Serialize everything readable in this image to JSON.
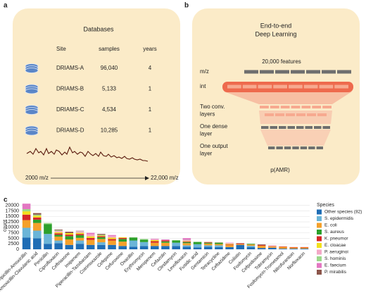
{
  "panel_labels": [
    "a",
    "b",
    "c"
  ],
  "databases": {
    "title": "Databases",
    "columns": [
      "Site",
      "samples",
      "years"
    ],
    "rows": [
      [
        "DRIAMS-A",
        "96,040",
        4
      ],
      [
        "DRIAMS-B",
        "5,133",
        1
      ],
      [
        "DRIAMS-C",
        "4,534",
        1
      ],
      [
        "DRIAMS-D",
        "10,285",
        1
      ]
    ],
    "axis_start": "2000 m/z",
    "axis_end": "22,000 m/z"
  },
  "deep_learning": {
    "title_lines": [
      "End-to-end",
      "Deep Learning"
    ],
    "features": "20,000 features",
    "layers": [
      [
        "m/z"
      ],
      [
        "int"
      ],
      [
        "Two conv.",
        "layers"
      ],
      [
        "One dense",
        "layer"
      ],
      [
        "One output",
        "layer"
      ]
    ],
    "output": "p(AMR)"
  },
  "chart_data": {
    "type": "bar",
    "stacked": true,
    "ylabel": "count",
    "legend_title": "Species",
    "grid": true,
    "categories": [
      "Ampicillin-Amoxicillin",
      "Amoxicillin-Clavulanic acid",
      "Penicillin",
      "Ciprofloxacin",
      "Ceftriaxone",
      "Imipenem",
      "Piperacillin-Tazobactam",
      "Cotrimoxazole",
      "Cefepime",
      "Cefuroxime",
      "Oxacillin",
      "Erythromycin",
      "Meropenem",
      "Cefazolin",
      "Clindamycin",
      "Levofloxacin",
      "Fusidic acid",
      "Gentamicin",
      "Tetracycline",
      "Ceftazidime",
      "Colistin",
      "Fosfomycin",
      "Cefpodoxime",
      "Tobramycin",
      "Fosfomycin-Trometamol",
      "Nitrofurantoin",
      "Norfloxacin"
    ],
    "ylim": [
      0,
      21500
    ],
    "yticks": [
      0,
      2500,
      5000,
      7500,
      10000,
      12500,
      15000,
      17500,
      20000
    ],
    "series": [
      {
        "name": "Other species (82)",
        "color": "#1f6db5",
        "values": [
          5300,
          5000,
          2500,
          2800,
          2000,
          2500,
          2000,
          2000,
          2000,
          1500,
          1200,
          1500,
          1500,
          1500,
          1500,
          1200,
          800,
          1200,
          1000,
          1000,
          2000,
          1000,
          600,
          700,
          300,
          300,
          300
        ]
      },
      {
        "name": "S. epidermidis",
        "color": "#6bb5d8",
        "values": [
          4500,
          3500,
          4500,
          1200,
          0,
          1500,
          0,
          1200,
          0,
          0,
          2800,
          1800,
          0,
          0,
          1500,
          600,
          1500,
          600,
          800,
          0,
          0,
          600,
          0,
          0,
          0,
          0,
          0
        ]
      },
      {
        "name": "E. coli",
        "color": "#f5a02a",
        "values": [
          3500,
          3500,
          0,
          1800,
          2500,
          1200,
          2300,
          1500,
          2000,
          2000,
          0,
          0,
          1500,
          1500,
          0,
          1000,
          0,
          800,
          600,
          900,
          400,
          600,
          1000,
          500,
          800,
          500,
          500
        ]
      },
      {
        "name": "S. aureus",
        "color": "#2ca02c",
        "values": [
          0,
          1500,
          4500,
          800,
          1500,
          1200,
          0,
          800,
          0,
          1200,
          1300,
          1100,
          0,
          600,
          1000,
          500,
          1000,
          400,
          600,
          0,
          0,
          300,
          0,
          0,
          0,
          0,
          0
        ]
      },
      {
        "name": "K. pneumor",
        "color": "#d62728",
        "values": [
          2500,
          1000,
          0,
          700,
          700,
          600,
          900,
          500,
          700,
          500,
          0,
          0,
          700,
          500,
          0,
          300,
          0,
          200,
          100,
          300,
          300,
          0,
          300,
          200,
          200,
          200,
          200
        ]
      },
      {
        "name": "E. cloacae",
        "color": "#f2e01c",
        "values": [
          1500,
          800,
          0,
          500,
          700,
          500,
          700,
          300,
          600,
          300,
          0,
          0,
          500,
          0,
          0,
          200,
          0,
          100,
          0,
          300,
          0,
          0,
          0,
          100,
          0,
          0,
          0
        ]
      },
      {
        "name": "P. aeruginoi",
        "color": "#f3a8c6",
        "values": [
          0,
          0,
          0,
          600,
          0,
          600,
          1000,
          0,
          700,
          0,
          0,
          0,
          400,
          0,
          0,
          400,
          0,
          200,
          0,
          400,
          0,
          0,
          0,
          200,
          0,
          0,
          0
        ]
      },
      {
        "name": "S. hominis",
        "color": "#9bd88a",
        "values": [
          1000,
          500,
          500,
          300,
          0,
          200,
          0,
          300,
          0,
          0,
          200,
          300,
          0,
          0,
          200,
          100,
          200,
          0,
          100,
          0,
          0,
          0,
          0,
          0,
          0,
          0,
          0
        ]
      },
      {
        "name": "E. faecium",
        "color": "#e377c2",
        "values": [
          2500,
          0,
          0,
          0,
          0,
          200,
          600,
          0,
          500,
          0,
          0,
          0,
          200,
          400,
          0,
          800,
          0,
          0,
          0,
          100,
          0,
          0,
          0,
          100,
          0,
          0,
          0
        ]
      },
      {
        "name": "P. mirabilis",
        "color": "#8c564b",
        "values": [
          0,
          700,
          0,
          300,
          600,
          0,
          0,
          400,
          0,
          0,
          0,
          0,
          0,
          0,
          0,
          0,
          0,
          0,
          0,
          0,
          100,
          0,
          300,
          0,
          0,
          0,
          0
        ]
      }
    ]
  }
}
